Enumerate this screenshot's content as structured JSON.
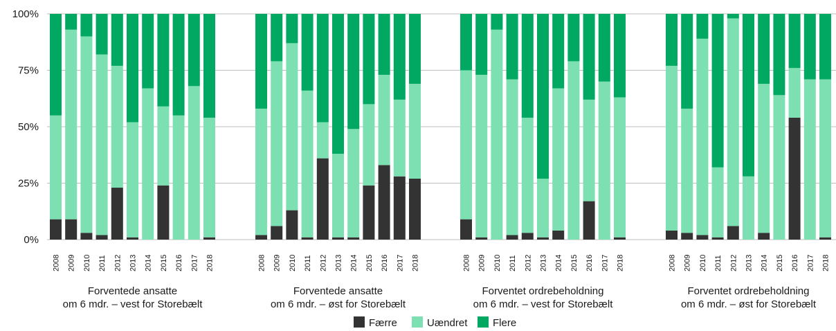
{
  "chart_data": {
    "type": "bar",
    "stacked": true,
    "percent_stacked": true,
    "y_ticks": [
      "0%",
      "25%",
      "50%",
      "75%",
      "100%"
    ],
    "ylim": [
      0,
      100
    ],
    "grid": "horizontal",
    "legend_position": "bottom-center",
    "colors": {
      "Færre": "#333333",
      "Uændret": "#7de0b2",
      "Flere": "#00a862",
      "grid": "#bdbdbd"
    },
    "series_names": [
      "Færre",
      "Uændret",
      "Flere"
    ],
    "groups": [
      {
        "label_line1": "Forventede ansatte",
        "label_line2": "om 6 mdr. – vest for Storebælt",
        "categories": [
          "2008",
          "2009",
          "2010",
          "2011",
          "2012",
          "2013",
          "2014",
          "2015",
          "2016",
          "2017",
          "2018"
        ],
        "faerre": [
          9,
          9,
          3,
          2,
          23,
          1,
          0,
          24,
          0,
          0,
          1
        ],
        "uaendret": [
          46,
          84,
          87,
          80,
          54,
          51,
          67,
          35,
          55,
          68,
          53
        ],
        "flere": [
          45,
          7,
          10,
          18,
          23,
          48,
          33,
          41,
          45,
          32,
          46
        ]
      },
      {
        "label_line1": "Forventede ansatte",
        "label_line2": "om 6 mdr. – øst for Storebælt",
        "categories": [
          "2008",
          "2009",
          "2010",
          "2011",
          "2012",
          "2013",
          "2014",
          "2015",
          "2016",
          "2017",
          "2018"
        ],
        "faerre": [
          2,
          6,
          13,
          1,
          36,
          1,
          1,
          24,
          33,
          28,
          27
        ],
        "uaendret": [
          56,
          73,
          74,
          65,
          16,
          37,
          48,
          36,
          40,
          34,
          42
        ],
        "flere": [
          42,
          21,
          13,
          34,
          48,
          62,
          51,
          40,
          27,
          38,
          31
        ]
      },
      {
        "label_line1": "Forventet ordrebeholdning",
        "label_line2": "om 6 mdr. – vest for Storebælt",
        "categories": [
          "2008",
          "2009",
          "2010",
          "2011",
          "2012",
          "2013",
          "2014",
          "2015",
          "2016",
          "2017",
          "2018"
        ],
        "faerre": [
          9,
          1,
          0,
          2,
          3,
          1,
          4,
          0,
          17,
          0,
          1
        ],
        "uaendret": [
          66,
          72,
          93,
          69,
          51,
          26,
          63,
          79,
          45,
          70,
          62
        ],
        "flere": [
          25,
          27,
          7,
          29,
          46,
          73,
          33,
          21,
          38,
          30,
          37
        ]
      },
      {
        "label_line1": "Forventet ordrebeholdning",
        "label_line2": "om 6 mdr. – øst for Storebælt",
        "categories": [
          "2008",
          "2009",
          "2010",
          "2011",
          "2012",
          "2013",
          "2014",
          "2015",
          "2016",
          "2017",
          "2018"
        ],
        "faerre": [
          4,
          3,
          2,
          1,
          6,
          0,
          3,
          0,
          54,
          0,
          1
        ],
        "uaendret": [
          73,
          55,
          87,
          31,
          92,
          28,
          66,
          64,
          22,
          71,
          70
        ],
        "flere": [
          23,
          42,
          11,
          68,
          2,
          72,
          31,
          36,
          24,
          29,
          29
        ]
      }
    ]
  }
}
